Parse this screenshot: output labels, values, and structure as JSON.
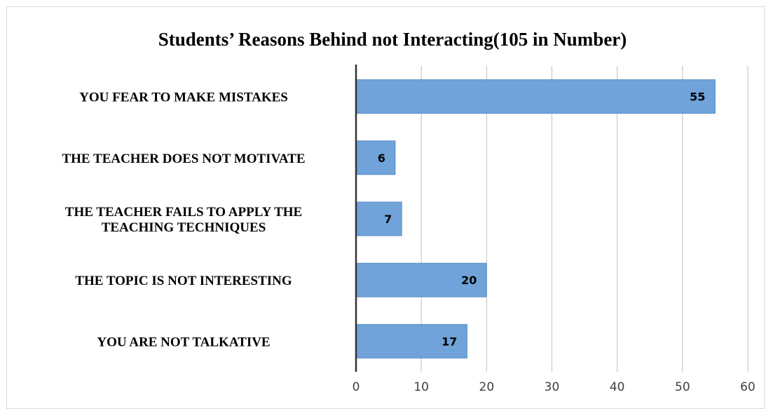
{
  "chart_data": {
    "type": "bar",
    "orientation": "horizontal",
    "title": "Students’ Reasons Behind not Interacting(105 in Number)",
    "categories": [
      [
        "YOU FEAR TO MAKE MISTAKES"
      ],
      [
        "THE TEACHER DOES NOT MOTIVATE"
      ],
      [
        "THE TEACHER FAILS TO APPLY THE",
        "TEACHING TECHNIQUES"
      ],
      [
        "THE TOPIC IS NOT INTERESTING"
      ],
      [
        "YOU ARE NOT TALKATIVE"
      ]
    ],
    "values": [
      55,
      6,
      7,
      20,
      17
    ],
    "xlim": [
      0,
      60
    ],
    "xticks": [
      0,
      10,
      20,
      30,
      40,
      50,
      60
    ],
    "grid": true,
    "legend": "none",
    "bar_color": "#6fa3d9",
    "bar_edge_color": "#5b8fc7",
    "grid_color": "#bfbfbf",
    "axis_color": "#333333"
  }
}
